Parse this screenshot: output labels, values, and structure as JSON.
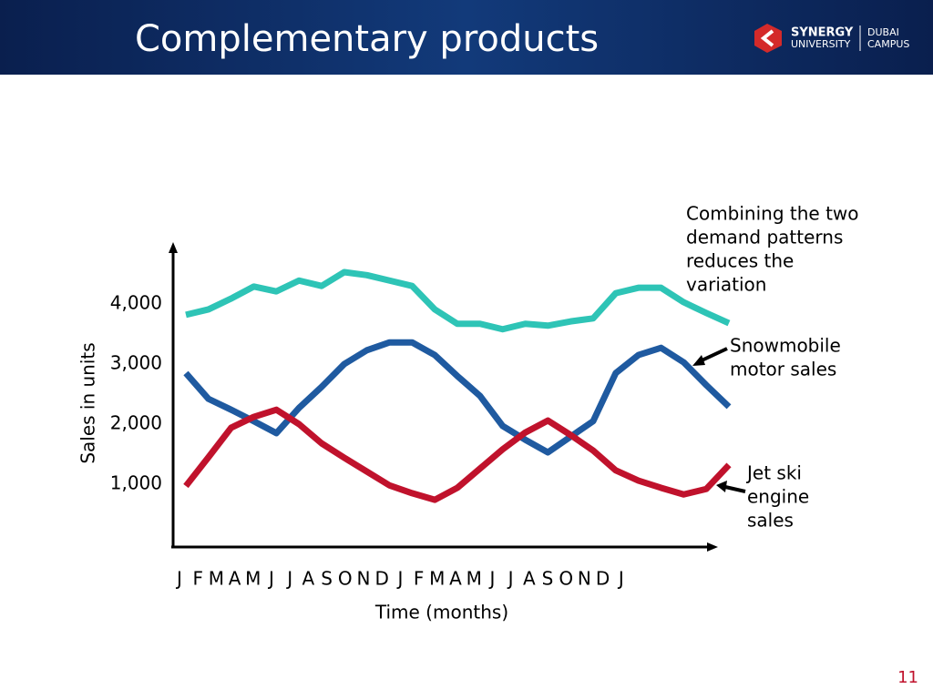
{
  "header": {
    "title": "Complementary products",
    "logo": {
      "name": "SYNERGY",
      "sub": "UNIVERSITY",
      "campus": [
        "DUBAI",
        "CAMPUS"
      ]
    }
  },
  "page_number": "11",
  "chart_data": {
    "type": "line",
    "xlabel": "Time (months)",
    "ylabel": "Sales in units",
    "categories": [
      "J",
      "F",
      "M",
      "A",
      "M",
      "J",
      "J",
      "A",
      "S",
      "O",
      "N",
      "D",
      "J",
      "F",
      "M",
      "A",
      "M",
      "J",
      "J",
      "A",
      "S",
      "O",
      "N",
      "D",
      "J"
    ],
    "ylim": [
      0,
      5000
    ],
    "yticks": [
      {
        "value": 1000,
        "label": "1,000"
      },
      {
        "value": 2000,
        "label": "2,000"
      },
      {
        "value": 3000,
        "label": "3,000"
      },
      {
        "value": 4000,
        "label": "4,000"
      }
    ],
    "grid": false,
    "series": [
      {
        "color": "#2ec4b6",
        "values": [
          3820,
          3910,
          4090,
          4290,
          4210,
          4390,
          4300,
          4530,
          4480,
          4390,
          4300,
          3910,
          3670,
          3670,
          3580,
          3670,
          3640,
          3710,
          3760,
          4180,
          4270,
          4270,
          4030,
          3850,
          3680
        ]
      },
      {
        "color": "#1f5aa0",
        "values": [
          2850,
          2420,
          2240,
          2050,
          1850,
          2270,
          2620,
          3000,
          3230,
          3360,
          3360,
          3150,
          2800,
          2470,
          1970,
          1740,
          1530,
          1790,
          2050,
          2850,
          3150,
          3270,
          3030,
          2650,
          2290
        ]
      },
      {
        "color": "#c0122c",
        "values": [
          970,
          1450,
          1940,
          2120,
          2240,
          2000,
          1680,
          1440,
          1210,
          980,
          850,
          740,
          940,
          1260,
          1580,
          1860,
          2060,
          1820,
          1560,
          1230,
          1060,
          940,
          830,
          920,
          1320
        ]
      }
    ],
    "annotations": [
      {
        "lines": [
          "Combining the two",
          "demand patterns",
          "reduces the",
          "variation"
        ]
      },
      {
        "lines": [
          "Snowmobile",
          "motor sales"
        ]
      },
      {
        "lines": [
          "Jet ski",
          "engine",
          "sales"
        ]
      }
    ]
  }
}
